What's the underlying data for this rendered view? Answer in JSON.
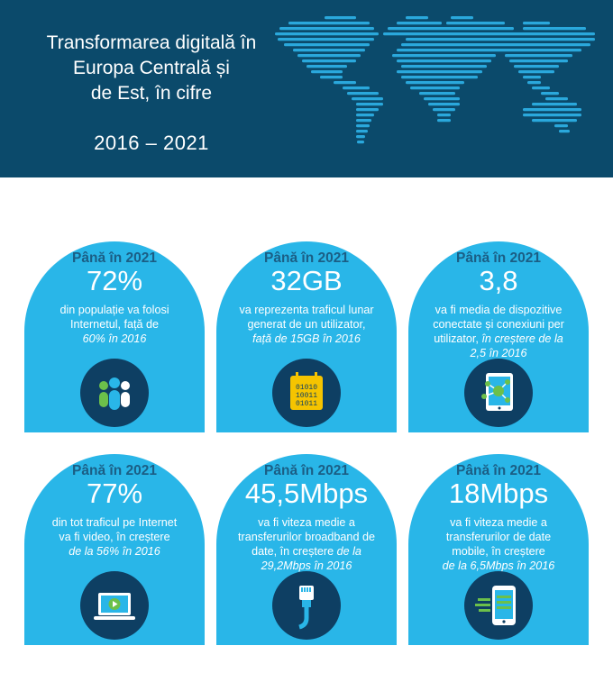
{
  "header": {
    "title_lines": [
      "Transformarea digitală în",
      "Europa Centrală și",
      "de Est, în cifre"
    ],
    "years": "2016 – 2021"
  },
  "cards": [
    {
      "lead": "Până în 2021",
      "value": "72%",
      "lines": [
        "din populație va folosi",
        "Internetul, față de"
      ],
      "italic": "60% în 2016",
      "icon": "people-icon"
    },
    {
      "lead": "Până în 2021",
      "value": "32GB",
      "lines": [
        "va reprezenta traficul lunar",
        "generat de un utilizator,"
      ],
      "italic": "față de 15GB în 2016",
      "icon": "calendar-binary-icon"
    },
    {
      "lead": "Până în 2021",
      "value": "3,8",
      "lines": [
        "va fi media de dispozitive",
        "conectate și conexiuni per"
      ],
      "mixed": [
        "utilizator, ",
        "în creștere de la"
      ],
      "italic": "2,5 în 2016",
      "icon": "tablet-network-icon"
    },
    {
      "lead": "Până în 2021",
      "value": "77%",
      "lines": [
        "din tot traficul pe Internet",
        "va fi video, în creștere"
      ],
      "italic": "de la 56% în 2016",
      "icon": "laptop-video-icon"
    },
    {
      "lead": "Până în 2021",
      "value": "45,5Mbps",
      "lines": [
        "va fi viteza medie a",
        "transferurilor broadband de"
      ],
      "mixed": [
        "date, în creștere ",
        "de la"
      ],
      "italic": "29,2Mbps în 2016",
      "icon": "ethernet-cable-icon"
    },
    {
      "lead": "Până în 2021",
      "value": "18Mbps",
      "lines": [
        "va fi viteza medie a",
        "transferurilor de date",
        "mobile, în creștere"
      ],
      "italic": "de la 6,5Mbps în 2016",
      "icon": "smartphone-speed-icon"
    }
  ],
  "colors": {
    "header_bg": "#0b4a6b",
    "card_bg": "#29b6e8",
    "icon_bg": "#0e3f63",
    "lead_text": "#1b5e85",
    "accent_green": "#6cc04a"
  }
}
